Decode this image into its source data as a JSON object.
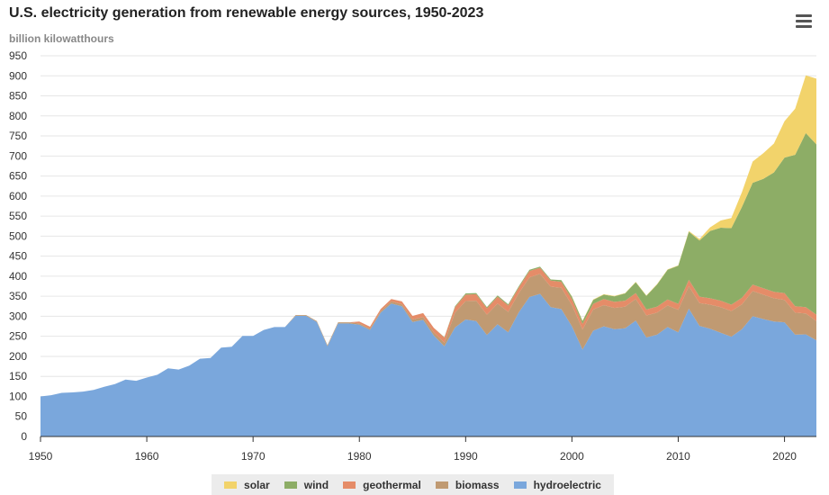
{
  "header": {
    "title": "U.S. electricity generation from renewable energy sources, 1950-2023",
    "subtitle": "billion kilowatthours"
  },
  "menu": {
    "icon": "hamburger-menu-icon"
  },
  "chart_data": {
    "type": "area",
    "stacked": true,
    "title": "U.S. electricity generation from renewable energy sources, 1950-2023",
    "ylabel": "billion kilowatthours",
    "xlabel": "",
    "ylim": [
      0,
      950
    ],
    "xlim": [
      1950,
      2023
    ],
    "y_ticks": [
      0,
      50,
      100,
      150,
      200,
      250,
      300,
      350,
      400,
      450,
      500,
      550,
      600,
      650,
      700,
      750,
      800,
      850,
      900,
      950
    ],
    "x_ticks": [
      1950,
      1960,
      1970,
      1980,
      1990,
      2000,
      2010,
      2020
    ],
    "grid": true,
    "legend_position": "bottom",
    "years": [
      1950,
      1951,
      1952,
      1953,
      1954,
      1955,
      1956,
      1957,
      1958,
      1959,
      1960,
      1961,
      1962,
      1963,
      1964,
      1965,
      1966,
      1967,
      1968,
      1969,
      1970,
      1971,
      1972,
      1973,
      1974,
      1975,
      1976,
      1977,
      1978,
      1979,
      1980,
      1981,
      1982,
      1983,
      1984,
      1985,
      1986,
      1987,
      1988,
      1989,
      1990,
      1991,
      1992,
      1993,
      1994,
      1995,
      1996,
      1997,
      1998,
      1999,
      2000,
      2001,
      2002,
      2003,
      2004,
      2005,
      2006,
      2007,
      2008,
      2009,
      2010,
      2011,
      2012,
      2013,
      2014,
      2015,
      2016,
      2017,
      2018,
      2019,
      2020,
      2021,
      2022,
      2023
    ],
    "series": [
      {
        "name": "hydroelectric",
        "color": "#7aa7dc",
        "values": [
          100,
          103,
          109,
          110,
          112,
          116,
          124,
          131,
          142,
          139,
          147,
          154,
          170,
          167,
          177,
          194,
          196,
          222,
          224,
          251,
          251,
          266,
          273,
          273,
          301,
          301,
          286,
          225,
          282,
          282,
          279,
          266,
          309,
          332,
          325,
          286,
          291,
          252,
          225,
          272,
          292,
          288,
          253,
          280,
          260,
          310,
          348,
          356,
          323,
          318,
          275,
          217,
          264,
          275,
          268,
          270,
          289,
          247,
          254,
          273,
          260,
          319,
          276,
          269,
          259,
          249,
          268,
          300,
          293,
          287,
          285,
          254,
          255,
          240
        ]
      },
      {
        "name": "biomass",
        "color": "#c09a72",
        "values": [
          0,
          0,
          0,
          0,
          0,
          0,
          0,
          0,
          0,
          0,
          0,
          0,
          0,
          0,
          0,
          0,
          0,
          0,
          0,
          0,
          0,
          0,
          0,
          0,
          2,
          2,
          2,
          3,
          3,
          3,
          3,
          3,
          4,
          5,
          5,
          6,
          7,
          8,
          9,
          37,
          46,
          51,
          51,
          52,
          51,
          48,
          49,
          50,
          51,
          53,
          53,
          50,
          53,
          53,
          53,
          54,
          54,
          55,
          55,
          54,
          56,
          56,
          57,
          60,
          64,
          64,
          62,
          63,
          61,
          58,
          56,
          55,
          52,
          48
        ]
      },
      {
        "name": "geothermal",
        "color": "#e58c68",
        "values": [
          0,
          0,
          0,
          0,
          0,
          0,
          0,
          0,
          0,
          0,
          0,
          0,
          0,
          0,
          0,
          0,
          0,
          0,
          0,
          0,
          0,
          0,
          0,
          0,
          0,
          0,
          0,
          0,
          0,
          0,
          5,
          5,
          5,
          6,
          7,
          9,
          10,
          11,
          13,
          14,
          16,
          16,
          16,
          17,
          16,
          14,
          16,
          15,
          15,
          15,
          15,
          14,
          14,
          15,
          15,
          15,
          15,
          15,
          15,
          15,
          15,
          16,
          16,
          16,
          16,
          16,
          16,
          16,
          16,
          16,
          17,
          16,
          16,
          16
        ]
      },
      {
        "name": "wind",
        "color": "#8dad66",
        "values": [
          0,
          0,
          0,
          0,
          0,
          0,
          0,
          0,
          0,
          0,
          0,
          0,
          0,
          0,
          0,
          0,
          0,
          0,
          0,
          0,
          0,
          0,
          0,
          0,
          0,
          0,
          0,
          0,
          0,
          0,
          0,
          0,
          0,
          0,
          0,
          0,
          0,
          0,
          1,
          2,
          3,
          3,
          3,
          3,
          3,
          3,
          3,
          3,
          3,
          4,
          6,
          7,
          10,
          11,
          14,
          18,
          27,
          34,
          55,
          74,
          95,
          120,
          140,
          168,
          182,
          191,
          227,
          254,
          273,
          298,
          338,
          378,
          434,
          425
        ]
      },
      {
        "name": "solar",
        "color": "#f2d36b",
        "values": [
          0,
          0,
          0,
          0,
          0,
          0,
          0,
          0,
          0,
          0,
          0,
          0,
          0,
          0,
          0,
          0,
          0,
          0,
          0,
          0,
          0,
          0,
          0,
          0,
          0,
          0,
          0,
          0,
          0,
          0,
          0,
          0,
          0,
          0,
          0,
          0,
          0,
          0,
          0,
          0,
          0,
          0,
          0,
          0,
          0,
          0,
          0,
          0,
          0,
          0,
          1,
          1,
          1,
          1,
          1,
          1,
          1,
          1,
          1,
          1,
          1,
          2,
          4,
          9,
          18,
          25,
          37,
          53,
          64,
          72,
          91,
          115,
          144,
          164
        ]
      }
    ]
  },
  "legend": {
    "items": [
      {
        "label": "solar",
        "color": "#f2d36b"
      },
      {
        "label": "wind",
        "color": "#8dad66"
      },
      {
        "label": "geothermal",
        "color": "#e58c68"
      },
      {
        "label": "biomass",
        "color": "#c09a72"
      },
      {
        "label": "hydroelectric",
        "color": "#7aa7dc"
      }
    ]
  }
}
